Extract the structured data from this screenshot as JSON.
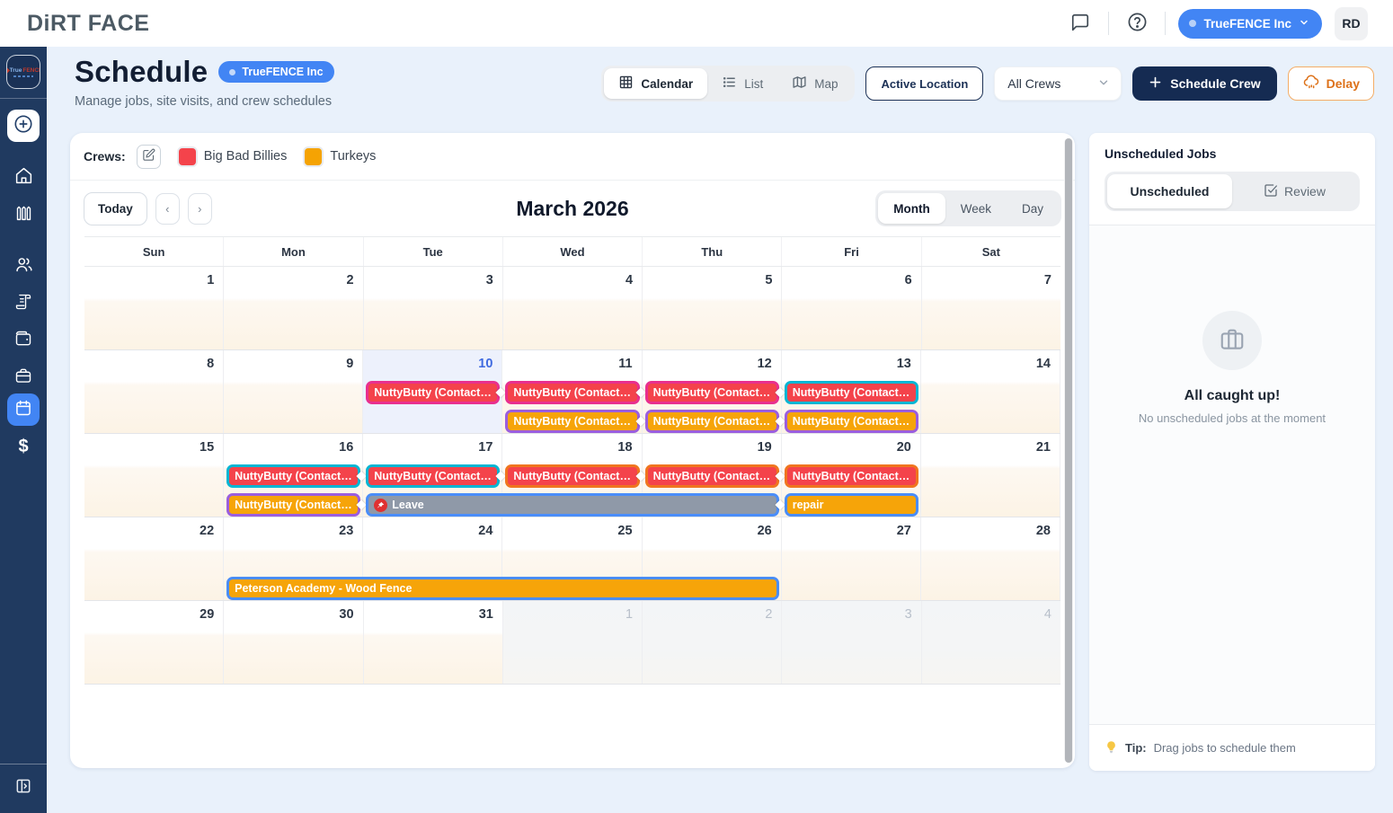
{
  "topbar": {
    "logo_text": "DiRT FACE",
    "org_button": "TrueFENCE Inc",
    "avatar_initials": "RD",
    "icons": [
      "chat-icon",
      "help-icon",
      "chevron-down-icon"
    ]
  },
  "sidebar": {
    "items": [
      "org-logo",
      "create-plus",
      "home",
      "fence",
      "team",
      "quotes",
      "wallet",
      "jobs-briefcase",
      "schedule-calendar",
      "finance-dollar",
      "collapse-panel"
    ],
    "active_item": "schedule-calendar",
    "active_color": "#4285f4"
  },
  "header": {
    "title": "Schedule",
    "badge": "TrueFENCE Inc",
    "subtitle": "Manage jobs, site visits, and crew schedules",
    "views": {
      "calendar": "Calendar",
      "list": "List",
      "map": "Map"
    },
    "active_view": "Calendar",
    "active_location_button": "Active Location",
    "crew_filter_value": "All Crews",
    "schedule_crew_button": "Schedule Crew",
    "delay_button": "Delay"
  },
  "crews": {
    "label": "Crews:",
    "items": [
      {
        "name": "Big Bad Billies",
        "color": "#f4434b"
      },
      {
        "name": "Turkeys",
        "color": "#f5a303"
      }
    ]
  },
  "calendar": {
    "today_button": "Today",
    "prev": "‹",
    "next": "›",
    "title": "March 2026",
    "modes": {
      "month": "Month",
      "week": "Week",
      "day": "Day"
    },
    "active_mode": "Month",
    "day_headers": [
      "Sun",
      "Mon",
      "Tue",
      "Wed",
      "Thu",
      "Fri",
      "Sat"
    ],
    "weeks": [
      {
        "days": [
          {
            "d": 1
          },
          {
            "d": 2
          },
          {
            "d": 3
          },
          {
            "d": 4
          },
          {
            "d": 5
          },
          {
            "d": 6
          },
          {
            "d": 7
          }
        ]
      },
      {
        "days": [
          {
            "d": 8
          },
          {
            "d": 9
          },
          {
            "d": 10,
            "today": true
          },
          {
            "d": 11
          },
          {
            "d": 12
          },
          {
            "d": 13
          },
          {
            "d": 14
          }
        ]
      },
      {
        "days": [
          {
            "d": 15
          },
          {
            "d": 16
          },
          {
            "d": 17
          },
          {
            "d": 18
          },
          {
            "d": 19
          },
          {
            "d": 20
          },
          {
            "d": 21
          }
        ]
      },
      {
        "days": [
          {
            "d": 22
          },
          {
            "d": 23
          },
          {
            "d": 24
          },
          {
            "d": 25
          },
          {
            "d": 26
          },
          {
            "d": 27
          },
          {
            "d": 28
          }
        ]
      },
      {
        "days": [
          {
            "d": 29
          },
          {
            "d": 30
          },
          {
            "d": 31
          },
          {
            "d": 1,
            "out": true
          },
          {
            "d": 2,
            "out": true
          },
          {
            "d": 3,
            "out": true
          },
          {
            "d": 4,
            "out": true
          }
        ]
      }
    ],
    "events": [
      {
        "week": 1,
        "lane": 0,
        "col": 2,
        "span": 1,
        "fill": "#f4434b",
        "border": "#e8308f",
        "label": "NuttyButty (Contact: …",
        "diamond_right": true
      },
      {
        "week": 1,
        "lane": 0,
        "col": 3,
        "span": 1,
        "fill": "#f4434b",
        "border": "#e8308f",
        "label": "NuttyButty (Contact: …",
        "diamond_right": true
      },
      {
        "week": 1,
        "lane": 0,
        "col": 4,
        "span": 1,
        "fill": "#f4434b",
        "border": "#e8308f",
        "label": "NuttyButty (Contact: …",
        "diamond_right": true
      },
      {
        "week": 1,
        "lane": 0,
        "col": 5,
        "span": 1,
        "fill": "#f4434b",
        "border": "#06b6d4",
        "label": "NuttyButty (Contact: …"
      },
      {
        "week": 1,
        "lane": 1,
        "col": 3,
        "span": 1,
        "fill": "#f6a409",
        "border": "#9b5ede",
        "label": "NuttyButty (Contact: …",
        "diamond_right": true
      },
      {
        "week": 1,
        "lane": 1,
        "col": 4,
        "span": 1,
        "fill": "#f6a409",
        "border": "#9b5ede",
        "label": "NuttyButty (Contact: …",
        "diamond_right": true
      },
      {
        "week": 1,
        "lane": 1,
        "col": 5,
        "span": 1,
        "fill": "#f6a409",
        "border": "#9b5ede",
        "label": "NuttyButty (Contact: …"
      },
      {
        "week": 2,
        "lane": 0,
        "col": 1,
        "span": 1,
        "fill": "#f4434b",
        "border": "#06b6d4",
        "label": "NuttyButty (Contact: …",
        "diamond_right": true
      },
      {
        "week": 2,
        "lane": 0,
        "col": 2,
        "span": 1,
        "fill": "#f4434b",
        "border": "#06b6d4",
        "label": "NuttyButty (Contact: …",
        "diamond_right": true
      },
      {
        "week": 2,
        "lane": 0,
        "col": 3,
        "span": 1,
        "fill": "#f4434b",
        "border": "#f0751f",
        "label": "NuttyButty (Contact: …",
        "diamond_right": true
      },
      {
        "week": 2,
        "lane": 0,
        "col": 4,
        "span": 1,
        "fill": "#f4434b",
        "border": "#f0751f",
        "label": "NuttyButty (Contact: …",
        "diamond_right": true
      },
      {
        "week": 2,
        "lane": 0,
        "col": 5,
        "span": 1,
        "fill": "#f4434b",
        "border": "#f0751f",
        "label": "NuttyButty (Contact: …"
      },
      {
        "week": 2,
        "lane": 1,
        "col": 1,
        "span": 1,
        "fill": "#f6a409",
        "border": "#9b5ede",
        "label": "NuttyButty (Contact: …",
        "diamond_right": true
      },
      {
        "week": 2,
        "lane": 1,
        "col": 2,
        "span": 3,
        "fill": "#8f99a8",
        "border": "#4a8df8",
        "label": "Leave",
        "icon": "pin",
        "diamond_right": true
      },
      {
        "week": 2,
        "lane": 1,
        "col": 5,
        "span": 1,
        "fill": "#f6a409",
        "border": "#4a8df8",
        "label": "repair"
      },
      {
        "week": 3,
        "lane": 1,
        "col": 1,
        "span": 4,
        "fill": "#f6a409",
        "border": "#4a8df8",
        "label": "Peterson Academy - Wood Fence"
      }
    ]
  },
  "unscheduled_panel": {
    "title": "Unscheduled Jobs",
    "tabs": {
      "unscheduled": "Unscheduled",
      "review": "Review"
    },
    "active_tab": "Unscheduled",
    "empty_title": "All caught up!",
    "empty_subtitle": "No unscheduled jobs at the moment",
    "tip_label": "Tip:",
    "tip_text": "Drag jobs to schedule them"
  }
}
